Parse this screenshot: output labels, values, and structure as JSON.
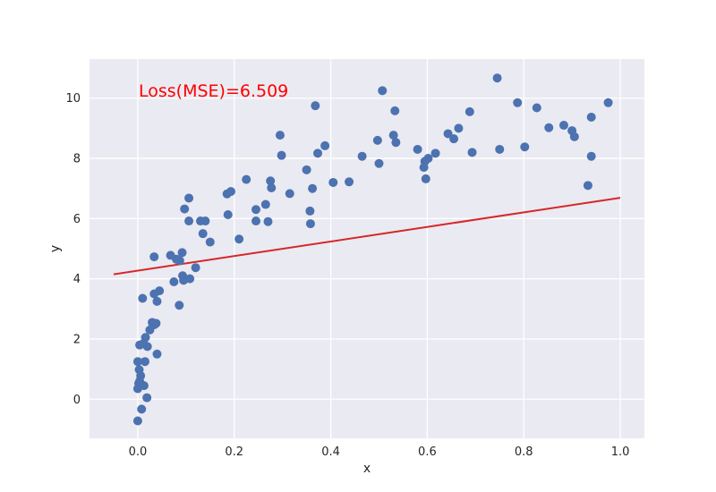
{
  "chart_data": {
    "type": "scatter",
    "xlabel": "x",
    "ylabel": "y",
    "xlim": [
      -0.1,
      1.05
    ],
    "ylim": [
      -1.3,
      11.3
    ],
    "xticks": [
      "0.0",
      "0.2",
      "0.4",
      "0.6",
      "0.8",
      "1.0"
    ],
    "yticks": [
      "0",
      "2",
      "4",
      "6",
      "8",
      "10"
    ],
    "grid": true,
    "annotation": "Loss(MSE)=6.509",
    "colors": {
      "points": "#4c72b0",
      "fit_line": "#d62728",
      "annotation": "#ff0000",
      "background": "#eaeaf2",
      "grid": "#ffffff"
    },
    "fit_line": {
      "x": [
        -0.05,
        1.0
      ],
      "y": [
        4.15,
        6.69
      ]
    },
    "points": [
      [
        0.0,
        -0.72
      ],
      [
        0.008,
        -0.33
      ],
      [
        0.0,
        0.35
      ],
      [
        0.002,
        0.52
      ],
      [
        0.004,
        0.6
      ],
      [
        0.006,
        0.78
      ],
      [
        0.003,
        0.98
      ],
      [
        0.0,
        1.25
      ],
      [
        0.013,
        0.45
      ],
      [
        0.019,
        0.05
      ],
      [
        0.004,
        1.8
      ],
      [
        0.012,
        1.85
      ],
      [
        0.016,
        2.05
      ],
      [
        0.015,
        1.25
      ],
      [
        0.02,
        1.75
      ],
      [
        0.025,
        2.3
      ],
      [
        0.03,
        2.55
      ],
      [
        0.034,
        2.47
      ],
      [
        0.038,
        2.52
      ],
      [
        0.04,
        1.5
      ],
      [
        0.01,
        3.35
      ],
      [
        0.034,
        3.5
      ],
      [
        0.04,
        3.25
      ],
      [
        0.045,
        3.6
      ],
      [
        0.034,
        4.73
      ],
      [
        0.068,
        4.78
      ],
      [
        0.075,
        3.9
      ],
      [
        0.08,
        4.65
      ],
      [
        0.086,
        3.12
      ],
      [
        0.087,
        4.6
      ],
      [
        0.093,
        4.1
      ],
      [
        0.095,
        3.95
      ],
      [
        0.092,
        4.87
      ],
      [
        0.108,
        4.0
      ],
      [
        0.12,
        4.37
      ],
      [
        0.097,
        6.32
      ],
      [
        0.106,
        5.92
      ],
      [
        0.106,
        6.68
      ],
      [
        0.13,
        5.92
      ],
      [
        0.135,
        5.5
      ],
      [
        0.14,
        5.92
      ],
      [
        0.15,
        5.22
      ],
      [
        0.185,
        6.82
      ],
      [
        0.193,
        6.9
      ],
      [
        0.187,
        6.13
      ],
      [
        0.21,
        5.32
      ],
      [
        0.225,
        7.3
      ],
      [
        0.245,
        6.3
      ],
      [
        0.245,
        5.92
      ],
      [
        0.265,
        6.47
      ],
      [
        0.27,
        5.9
      ],
      [
        0.275,
        7.25
      ],
      [
        0.277,
        7.02
      ],
      [
        0.295,
        8.77
      ],
      [
        0.298,
        8.1
      ],
      [
        0.315,
        6.83
      ],
      [
        0.35,
        7.62
      ],
      [
        0.357,
        6.25
      ],
      [
        0.358,
        5.83
      ],
      [
        0.362,
        7.0
      ],
      [
        0.368,
        9.75
      ],
      [
        0.373,
        8.17
      ],
      [
        0.388,
        8.42
      ],
      [
        0.405,
        7.2
      ],
      [
        0.438,
        7.22
      ],
      [
        0.465,
        8.07
      ],
      [
        0.497,
        8.6
      ],
      [
        0.5,
        7.83
      ],
      [
        0.507,
        10.25
      ],
      [
        0.53,
        8.77
      ],
      [
        0.533,
        9.58
      ],
      [
        0.535,
        8.53
      ],
      [
        0.58,
        8.3
      ],
      [
        0.593,
        7.7
      ],
      [
        0.595,
        7.9
      ],
      [
        0.597,
        7.32
      ],
      [
        0.602,
        8.0
      ],
      [
        0.617,
        8.17
      ],
      [
        0.643,
        8.82
      ],
      [
        0.655,
        8.65
      ],
      [
        0.665,
        9.0
      ],
      [
        0.688,
        9.55
      ],
      [
        0.693,
        8.2
      ],
      [
        0.745,
        10.67
      ],
      [
        0.75,
        8.3
      ],
      [
        0.787,
        9.85
      ],
      [
        0.802,
        8.38
      ],
      [
        0.827,
        9.68
      ],
      [
        0.852,
        9.02
      ],
      [
        0.883,
        9.1
      ],
      [
        0.9,
        8.92
      ],
      [
        0.905,
        8.72
      ],
      [
        0.933,
        7.1
      ],
      [
        0.94,
        9.37
      ],
      [
        0.94,
        8.07
      ],
      [
        0.975,
        9.85
      ]
    ]
  }
}
